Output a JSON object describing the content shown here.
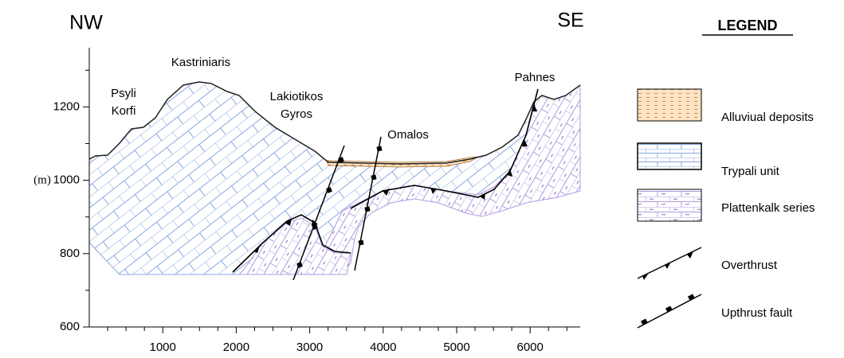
{
  "directions": {
    "left": "NW",
    "right": "SE"
  },
  "places": [
    {
      "lines": [
        "Psyli",
        "Korfi"
      ]
    },
    {
      "lines": [
        "Kastriniaris"
      ]
    },
    {
      "lines": [
        "Lakiotikos",
        "Gyros"
      ]
    },
    {
      "lines": [
        "Omalos"
      ]
    },
    {
      "lines": [
        "Pahnes"
      ]
    }
  ],
  "y_axis": {
    "unit": "(m)",
    "ticks": [
      600,
      800,
      1000,
      1200
    ]
  },
  "x_axis": {
    "ticks": [
      1000,
      2000,
      3000,
      4000,
      5000,
      6000
    ]
  },
  "legend": {
    "title": "LEGEND",
    "items": [
      "Alluviual deposits",
      "Trypali unit",
      "Plattenkalk series",
      "Overthrust",
      "Upthrust fault"
    ]
  }
}
